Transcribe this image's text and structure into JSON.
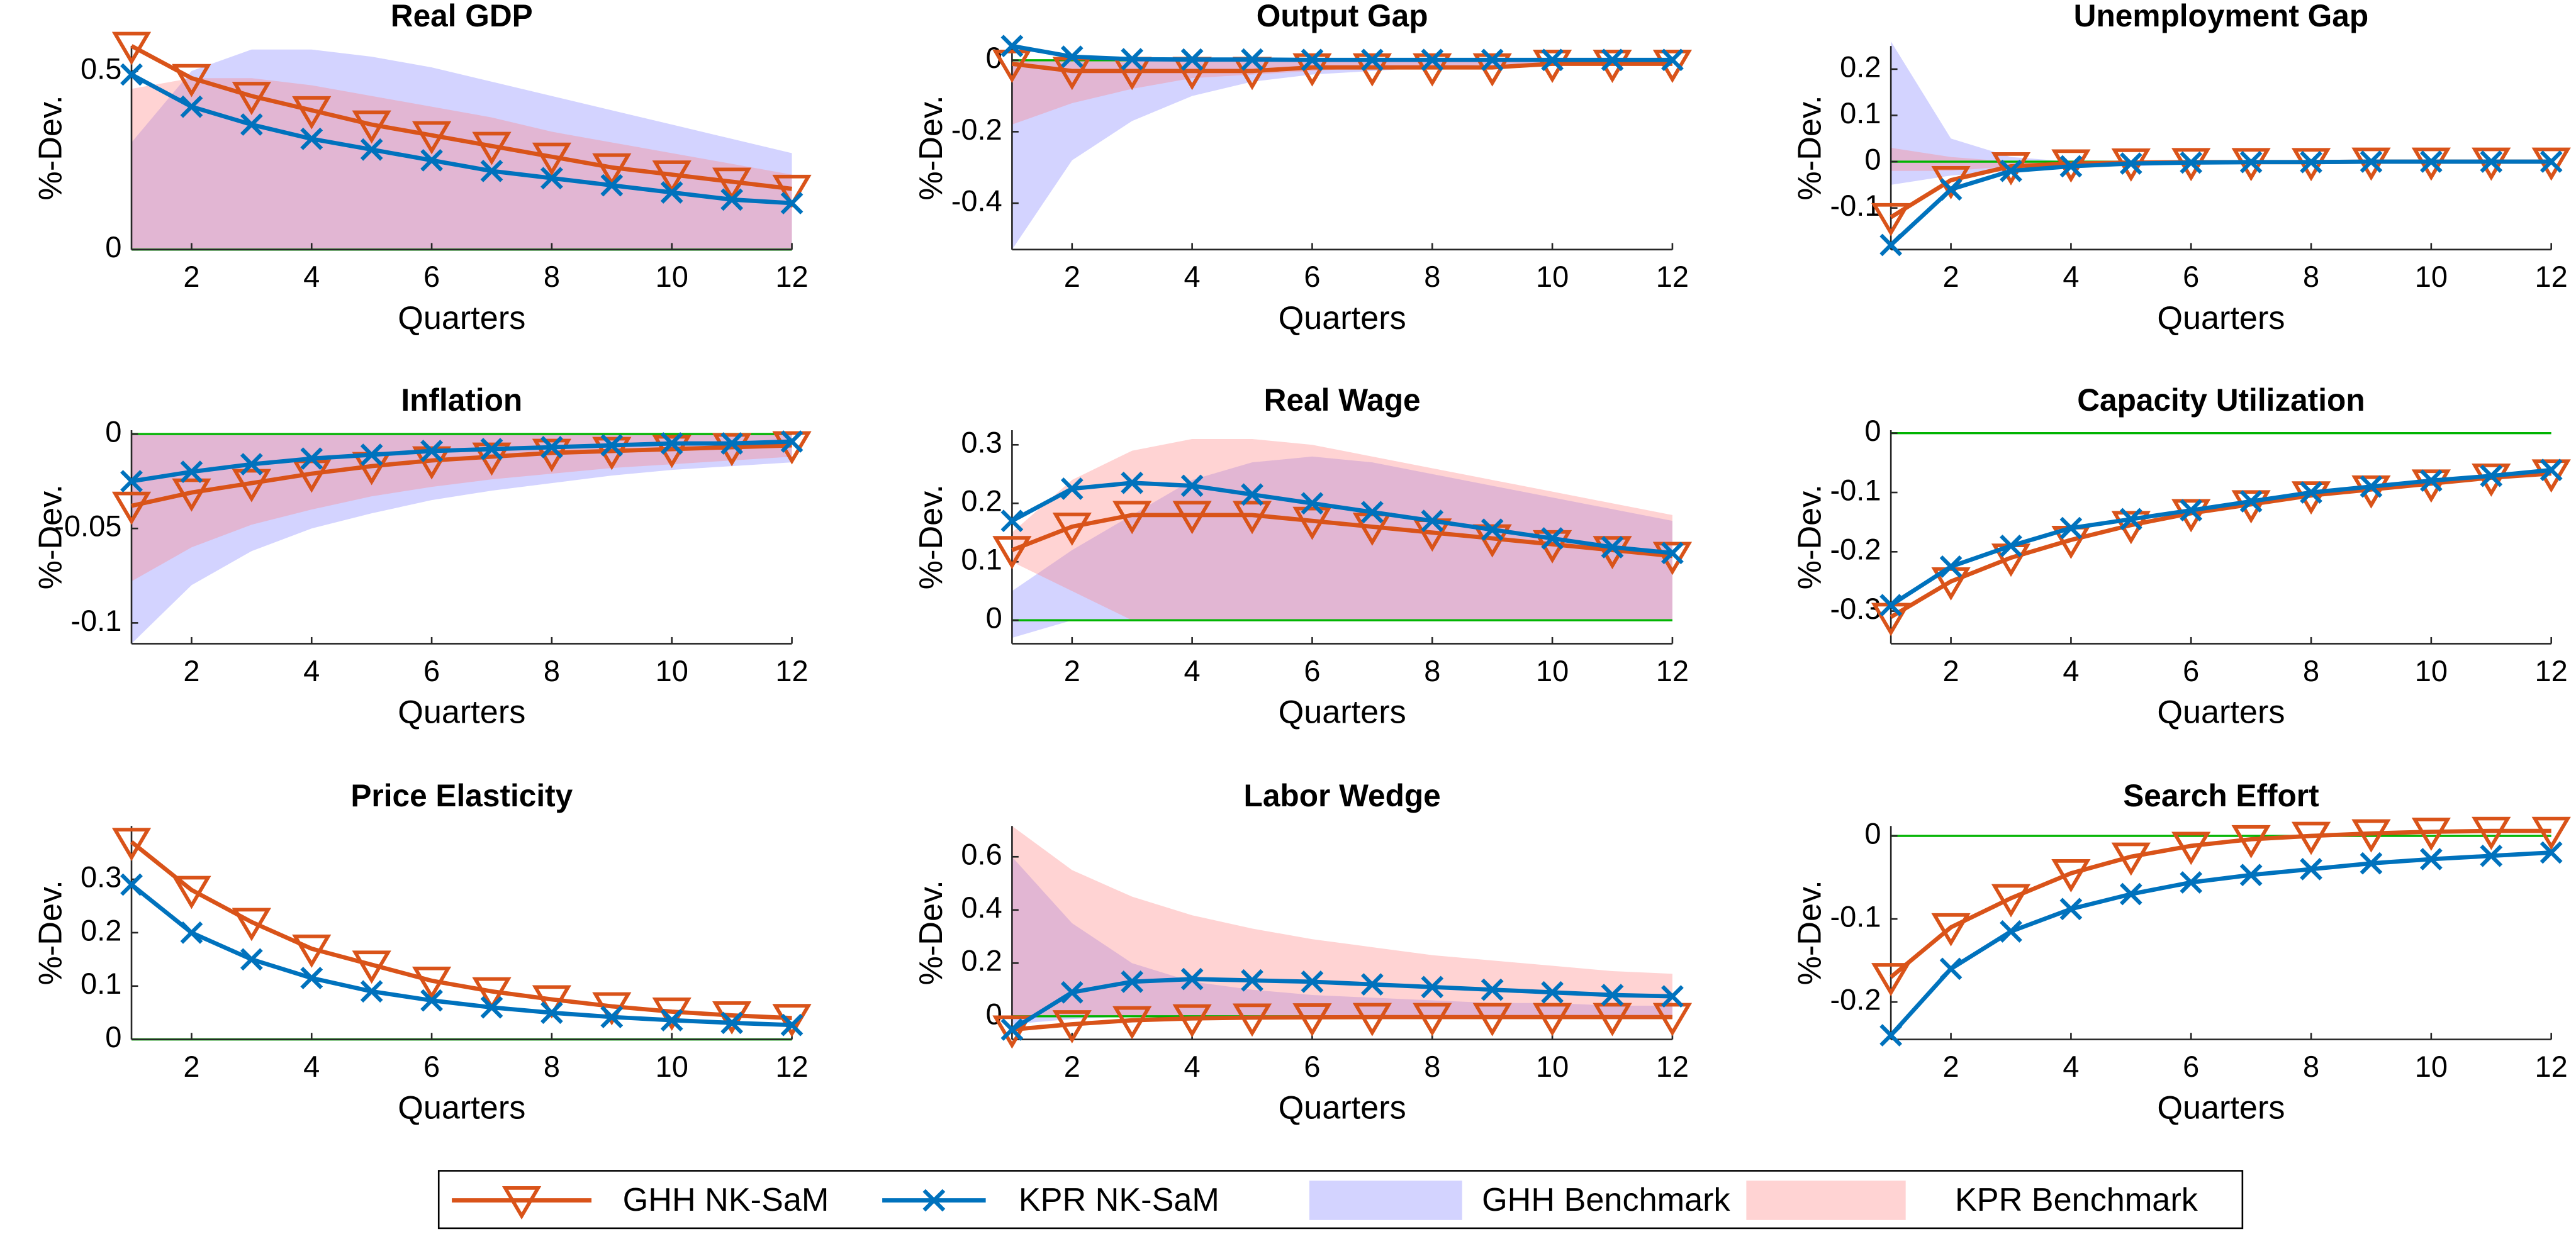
{
  "chart_data": [
    {
      "type": "line",
      "title": "Real GDP",
      "xlabel": "Quarters",
      "ylabel": "%-Dev.",
      "x": [
        1,
        2,
        3,
        4,
        5,
        6,
        7,
        8,
        9,
        10,
        11,
        12
      ],
      "xlim": [
        1,
        12
      ],
      "xticks": [
        2,
        4,
        6,
        8,
        10,
        12
      ],
      "ylim": [
        0,
        0.57
      ],
      "yticks": [
        0,
        0.5
      ],
      "hline": 0,
      "hline_color": "#00b400",
      "series": [
        {
          "name": "GHH NK-SaM",
          "color": "#d95319",
          "marker": "triangle",
          "values": [
            0.57,
            0.48,
            0.43,
            0.39,
            0.35,
            0.32,
            0.29,
            0.26,
            0.23,
            0.21,
            0.19,
            0.17
          ]
        },
        {
          "name": "KPR NK-SaM",
          "color": "#0072bd",
          "marker": "x",
          "values": [
            0.49,
            0.4,
            0.35,
            0.31,
            0.28,
            0.25,
            0.22,
            0.2,
            0.18,
            0.16,
            0.14,
            0.13
          ]
        },
        {
          "name": "GHH Benchmark",
          "color": "#8080ff",
          "upper": [
            0.3,
            0.5,
            0.56,
            0.56,
            0.54,
            0.51,
            0.47,
            0.43,
            0.39,
            0.35,
            0.31,
            0.27
          ],
          "lower": [
            0,
            0,
            0,
            0,
            0,
            0,
            0,
            0,
            0,
            0,
            0,
            0
          ]
        },
        {
          "name": "KPR Benchmark",
          "color": "#ff8080",
          "upper": [
            0.45,
            0.48,
            0.48,
            0.46,
            0.43,
            0.4,
            0.37,
            0.33,
            0.3,
            0.27,
            0.24,
            0.21
          ],
          "lower": [
            0,
            0,
            0,
            0,
            0,
            0,
            0,
            0,
            0,
            0,
            0,
            0
          ]
        }
      ]
    },
    {
      "type": "line",
      "title": "Output Gap",
      "xlabel": "Quarters",
      "ylabel": "%-Dev.",
      "x": [
        1,
        2,
        3,
        4,
        5,
        6,
        7,
        8,
        9,
        10,
        11,
        12
      ],
      "xlim": [
        1,
        12
      ],
      "xticks": [
        2,
        4,
        6,
        8,
        10,
        12
      ],
      "ylim": [
        -0.53,
        0.04
      ],
      "yticks": [
        -0.4,
        -0.2,
        0
      ],
      "hline": 0,
      "hline_color": "#00b400",
      "series": [
        {
          "name": "GHH NK-SaM",
          "color": "#d95319",
          "marker": "triangle",
          "values": [
            -0.01,
            -0.03,
            -0.03,
            -0.03,
            -0.03,
            -0.02,
            -0.02,
            -0.02,
            -0.02,
            -0.01,
            -0.01,
            -0.01
          ]
        },
        {
          "name": "KPR NK-SaM",
          "color": "#0072bd",
          "marker": "x",
          "values": [
            0.04,
            0.01,
            0.003,
            0.002,
            0.002,
            0.001,
            0.001,
            0.001,
            0.001,
            0.001,
            0.001,
            0.001
          ]
        },
        {
          "name": "GHH Benchmark",
          "color": "#8080ff",
          "upper": [
            0,
            0,
            0,
            0,
            0,
            0,
            0,
            0,
            0,
            0,
            0,
            0
          ],
          "lower": [
            -0.53,
            -0.28,
            -0.17,
            -0.1,
            -0.06,
            -0.04,
            -0.03,
            -0.02,
            -0.02,
            -0.01,
            -0.01,
            -0.01
          ]
        },
        {
          "name": "KPR Benchmark",
          "color": "#ff8080",
          "upper": [
            0,
            0,
            0,
            0,
            0,
            0,
            0,
            0,
            0,
            0,
            0,
            0
          ],
          "lower": [
            -0.18,
            -0.12,
            -0.08,
            -0.05,
            -0.04,
            -0.03,
            -0.02,
            -0.02,
            -0.01,
            -0.01,
            -0.01,
            -0.01
          ]
        }
      ]
    },
    {
      "type": "line",
      "title": "Unemployment Gap",
      "xlabel": "Quarters",
      "ylabel": "%-Dev.",
      "x": [
        1,
        2,
        3,
        4,
        5,
        6,
        7,
        8,
        9,
        10,
        11,
        12
      ],
      "xlim": [
        1,
        12
      ],
      "xticks": [
        2,
        4,
        6,
        8,
        10,
        12
      ],
      "ylim": [
        -0.19,
        0.25
      ],
      "yticks": [
        -0.1,
        0,
        0.1,
        0.2
      ],
      "hline": 0,
      "hline_color": "#00b400",
      "series": [
        {
          "name": "GHH NK-SaM",
          "color": "#d95319",
          "marker": "triangle",
          "values": [
            -0.12,
            -0.04,
            -0.01,
            -0.004,
            -0.002,
            -0.001,
            -0.001,
            -0.001,
            0,
            0,
            0,
            0
          ]
        },
        {
          "name": "KPR NK-SaM",
          "color": "#0072bd",
          "marker": "x",
          "values": [
            -0.18,
            -0.06,
            -0.02,
            -0.01,
            -0.004,
            -0.002,
            -0.001,
            -0.001,
            0,
            0,
            0,
            0
          ]
        },
        {
          "name": "GHH Benchmark",
          "color": "#8080ff",
          "upper": [
            0.26,
            0.05,
            0.01,
            0,
            0,
            0,
            0,
            0,
            0,
            0,
            0,
            0
          ],
          "lower": [
            -0.05,
            -0.03,
            -0.02,
            -0.01,
            -0.01,
            -0.005,
            0,
            0,
            0,
            0,
            0,
            0
          ]
        },
        {
          "name": "KPR Benchmark",
          "color": "#ff8080",
          "upper": [
            0.03,
            0.01,
            0,
            0,
            0,
            0,
            0,
            0,
            0,
            0,
            0,
            0
          ],
          "lower": [
            -0.02,
            -0.02,
            -0.01,
            -0.005,
            0,
            0,
            0,
            0,
            0,
            0,
            0,
            0
          ]
        }
      ]
    },
    {
      "type": "line",
      "title": "Inflation",
      "xlabel": "Quarters",
      "ylabel": "%-Dev.",
      "x": [
        1,
        2,
        3,
        4,
        5,
        6,
        7,
        8,
        9,
        10,
        11,
        12
      ],
      "xlim": [
        1,
        12
      ],
      "xticks": [
        2,
        4,
        6,
        8,
        10,
        12
      ],
      "ylim": [
        -0.111,
        0.002
      ],
      "yticks": [
        -0.1,
        -0.05,
        0
      ],
      "hline": 0,
      "hline_color": "#00b400",
      "series": [
        {
          "name": "GHH NK-SaM",
          "color": "#d95319",
          "marker": "triangle",
          "values": [
            -0.038,
            -0.031,
            -0.026,
            -0.021,
            -0.017,
            -0.014,
            -0.012,
            -0.01,
            -0.009,
            -0.008,
            -0.007,
            -0.006
          ]
        },
        {
          "name": "KPR NK-SaM",
          "color": "#0072bd",
          "marker": "x",
          "values": [
            -0.025,
            -0.02,
            -0.016,
            -0.013,
            -0.011,
            -0.009,
            -0.008,
            -0.007,
            -0.006,
            -0.005,
            -0.005,
            -0.004
          ]
        },
        {
          "name": "GHH Benchmark",
          "color": "#8080ff",
          "upper": [
            0,
            0,
            0,
            0,
            0,
            0,
            0,
            0,
            0,
            0,
            0,
            0
          ],
          "lower": [
            -0.111,
            -0.08,
            -0.062,
            -0.05,
            -0.042,
            -0.035,
            -0.03,
            -0.026,
            -0.022,
            -0.019,
            -0.017,
            -0.015
          ]
        },
        {
          "name": "KPR Benchmark",
          "color": "#ff8080",
          "upper": [
            0,
            0,
            0,
            0,
            0,
            0,
            0,
            0,
            0,
            0,
            0,
            0
          ],
          "lower": [
            -0.078,
            -0.06,
            -0.048,
            -0.04,
            -0.033,
            -0.028,
            -0.024,
            -0.021,
            -0.018,
            -0.016,
            -0.014,
            -0.012
          ]
        }
      ]
    },
    {
      "type": "line",
      "title": "Real Wage",
      "xlabel": "Quarters",
      "ylabel": "%-Dev.",
      "x": [
        1,
        2,
        3,
        4,
        5,
        6,
        7,
        8,
        9,
        10,
        11,
        12
      ],
      "xlim": [
        1,
        12
      ],
      "xticks": [
        2,
        4,
        6,
        8,
        10,
        12
      ],
      "ylim": [
        -0.04,
        0.325
      ],
      "yticks": [
        0,
        0.1,
        0.2,
        0.3
      ],
      "hline": 0,
      "hline_color": "#00b400",
      "series": [
        {
          "name": "GHH NK-SaM",
          "color": "#d95319",
          "marker": "triangle",
          "values": [
            0.12,
            0.16,
            0.18,
            0.18,
            0.18,
            0.17,
            0.16,
            0.15,
            0.14,
            0.13,
            0.12,
            0.11
          ]
        },
        {
          "name": "KPR NK-SaM",
          "color": "#0072bd",
          "marker": "x",
          "values": [
            0.17,
            0.225,
            0.235,
            0.23,
            0.215,
            0.2,
            0.185,
            0.17,
            0.155,
            0.14,
            0.125,
            0.115
          ]
        },
        {
          "name": "GHH Benchmark",
          "color": "#8080ff",
          "upper": [
            0.05,
            0.12,
            0.18,
            0.24,
            0.27,
            0.28,
            0.27,
            0.25,
            0.23,
            0.21,
            0.19,
            0.17
          ],
          "lower": [
            -0.03,
            0,
            0,
            0,
            0,
            0,
            0,
            0,
            0,
            0,
            0,
            0
          ]
        },
        {
          "name": "KPR Benchmark",
          "color": "#ff8080",
          "upper": [
            0.15,
            0.24,
            0.29,
            0.31,
            0.31,
            0.3,
            0.28,
            0.26,
            0.24,
            0.22,
            0.2,
            0.18
          ],
          "lower": [
            0.1,
            0.05,
            0,
            0,
            0,
            0,
            0,
            0,
            0,
            0,
            0,
            0
          ]
        }
      ]
    },
    {
      "type": "line",
      "title": "Capacity Utilization",
      "xlabel": "Quarters",
      "ylabel": "%-Dev.",
      "x": [
        1,
        2,
        3,
        4,
        5,
        6,
        7,
        8,
        9,
        10,
        11,
        12
      ],
      "xlim": [
        1,
        12
      ],
      "xticks": [
        2,
        4,
        6,
        8,
        10,
        12
      ],
      "ylim": [
        -0.355,
        0.005
      ],
      "yticks": [
        -0.3,
        -0.2,
        -0.1,
        0
      ],
      "hline": 0,
      "hline_color": "#00b400",
      "series": [
        {
          "name": "GHH NK-SaM",
          "color": "#d95319",
          "marker": "triangle",
          "values": [
            -0.31,
            -0.25,
            -0.21,
            -0.18,
            -0.155,
            -0.135,
            -0.12,
            -0.105,
            -0.095,
            -0.085,
            -0.075,
            -0.068
          ]
        },
        {
          "name": "KPR NK-SaM",
          "color": "#0072bd",
          "marker": "x",
          "values": [
            -0.29,
            -0.225,
            -0.19,
            -0.16,
            -0.145,
            -0.13,
            -0.115,
            -0.1,
            -0.09,
            -0.08,
            -0.072,
            -0.062
          ]
        }
      ]
    },
    {
      "type": "line",
      "title": "Price Elasticity",
      "xlabel": "Quarters",
      "ylabel": "%-Dev.",
      "x": [
        1,
        2,
        3,
        4,
        5,
        6,
        7,
        8,
        9,
        10,
        11,
        12
      ],
      "xlim": [
        1,
        12
      ],
      "xticks": [
        2,
        4,
        6,
        8,
        10,
        12
      ],
      "ylim": [
        0,
        0.4
      ],
      "yticks": [
        0,
        0.1,
        0.2,
        0.3
      ],
      "hline": 0,
      "hline_color": "#00b400",
      "series": [
        {
          "name": "GHH NK-SaM",
          "color": "#d95319",
          "marker": "triangle",
          "values": [
            0.37,
            0.28,
            0.22,
            0.17,
            0.14,
            0.11,
            0.09,
            0.075,
            0.062,
            0.052,
            0.045,
            0.04
          ]
        },
        {
          "name": "KPR NK-SaM",
          "color": "#0072bd",
          "marker": "x",
          "values": [
            0.29,
            0.2,
            0.15,
            0.115,
            0.09,
            0.073,
            0.06,
            0.05,
            0.042,
            0.036,
            0.031,
            0.027
          ]
        }
      ]
    },
    {
      "type": "line",
      "title": "Labor Wedge",
      "xlabel": "Quarters",
      "ylabel": "%-Dev.",
      "x": [
        1,
        2,
        3,
        4,
        5,
        6,
        7,
        8,
        9,
        10,
        11,
        12
      ],
      "xlim": [
        1,
        12
      ],
      "xticks": [
        2,
        4,
        6,
        8,
        10,
        12
      ],
      "ylim": [
        -0.087,
        0.716
      ],
      "yticks": [
        0,
        0.2,
        0.4,
        0.6
      ],
      "hline": 0,
      "hline_color": "#00b400",
      "series": [
        {
          "name": "GHH NK-SaM",
          "color": "#d95319",
          "marker": "triangle",
          "values": [
            -0.05,
            -0.03,
            -0.015,
            -0.008,
            -0.005,
            -0.004,
            -0.003,
            -0.003,
            -0.003,
            -0.003,
            -0.003,
            -0.003
          ]
        },
        {
          "name": "KPR NK-SaM",
          "color": "#0072bd",
          "marker": "x",
          "values": [
            -0.05,
            0.09,
            0.13,
            0.14,
            0.135,
            0.13,
            0.12,
            0.11,
            0.1,
            0.09,
            0.08,
            0.075
          ]
        },
        {
          "name": "GHH Benchmark",
          "color": "#8080ff",
          "upper": [
            0.6,
            0.35,
            0.2,
            0.13,
            0.1,
            0.08,
            0.07,
            0.06,
            0.05,
            0.05,
            0.04,
            0.04
          ],
          "lower": [
            -0.03,
            -0.01,
            0,
            0,
            0,
            0,
            0,
            0,
            0,
            0,
            0,
            0
          ]
        },
        {
          "name": "KPR Benchmark",
          "color": "#ff8080",
          "upper": [
            0.716,
            0.55,
            0.45,
            0.38,
            0.33,
            0.29,
            0.26,
            0.23,
            0.21,
            0.19,
            0.17,
            0.16
          ],
          "lower": [
            0,
            0,
            0,
            0,
            0,
            0,
            0,
            0,
            0,
            0,
            0,
            0
          ]
        }
      ]
    },
    {
      "type": "line",
      "title": "Search Effort",
      "xlabel": "Quarters",
      "ylabel": "%-Dev.",
      "x": [
        1,
        2,
        3,
        4,
        5,
        6,
        7,
        8,
        9,
        10,
        11,
        12
      ],
      "xlim": [
        1,
        12
      ],
      "xticks": [
        2,
        4,
        6,
        8,
        10,
        12
      ],
      "ylim": [
        -0.245,
        0.012
      ],
      "yticks": [
        -0.2,
        -0.1,
        0
      ],
      "hline": 0,
      "hline_color": "#00b400",
      "series": [
        {
          "name": "GHH NK-SaM",
          "color": "#d95319",
          "marker": "triangle",
          "values": [
            -0.17,
            -0.11,
            -0.075,
            -0.045,
            -0.025,
            -0.012,
            -0.004,
            0,
            0.003,
            0.005,
            0.006,
            0.006
          ]
        },
        {
          "name": "KPR NK-SaM",
          "color": "#0072bd",
          "marker": "x",
          "values": [
            -0.24,
            -0.16,
            -0.115,
            -0.088,
            -0.07,
            -0.056,
            -0.047,
            -0.04,
            -0.033,
            -0.028,
            -0.024,
            -0.02
          ]
        }
      ]
    }
  ]
}
